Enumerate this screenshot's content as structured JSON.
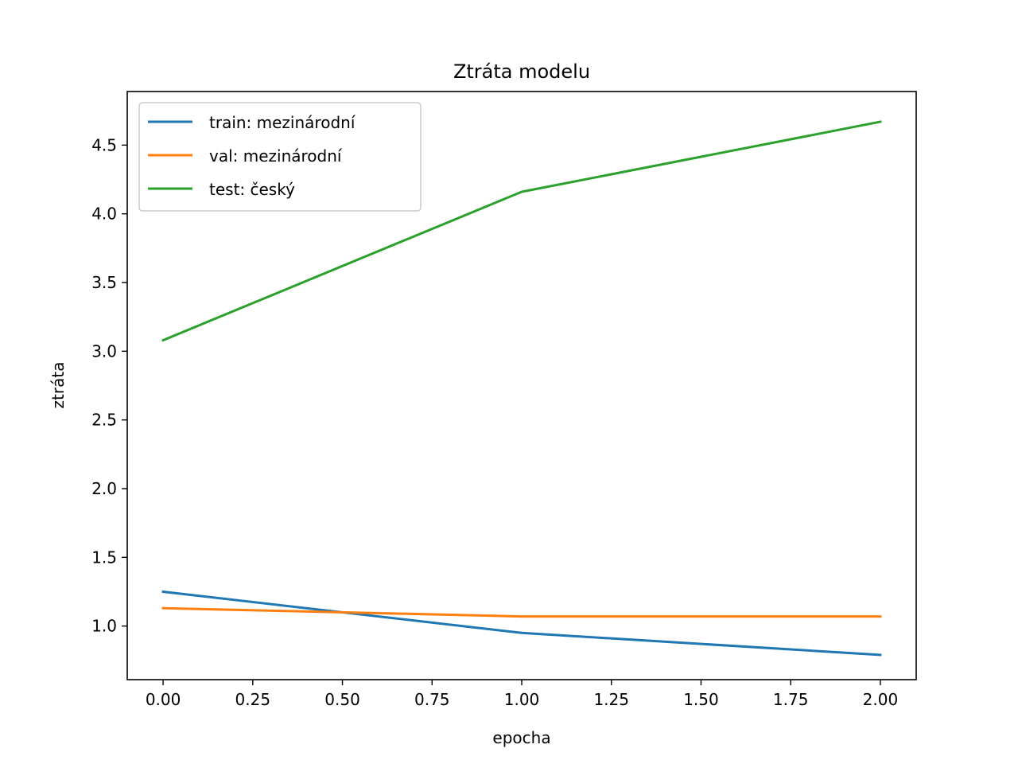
{
  "chart_data": {
    "type": "line",
    "title": "Ztráta modelu",
    "xlabel": "epocha",
    "ylabel": "ztráta",
    "x": [
      0,
      1,
      2
    ],
    "xlim": [
      -0.1,
      2.1
    ],
    "ylim": [
      0.61,
      4.89
    ],
    "xticks": [
      "0.00",
      "0.25",
      "0.50",
      "0.75",
      "1.00",
      "1.25",
      "1.50",
      "1.75",
      "2.00"
    ],
    "yticks": [
      "1.0",
      "1.5",
      "2.0",
      "2.5",
      "3.0",
      "3.5",
      "4.0",
      "4.5"
    ],
    "grid": false,
    "legend_position": "top-left",
    "series": [
      {
        "name": "train: mezinárodní",
        "color": "#1f77b4",
        "values": [
          1.25,
          0.95,
          0.79
        ]
      },
      {
        "name": "val: mezinárodní",
        "color": "#ff7f0e",
        "values": [
          1.13,
          1.07,
          1.07
        ]
      },
      {
        "name": "test: český",
        "color": "#2ca02c",
        "values": [
          3.08,
          4.16,
          4.67
        ]
      }
    ]
  }
}
